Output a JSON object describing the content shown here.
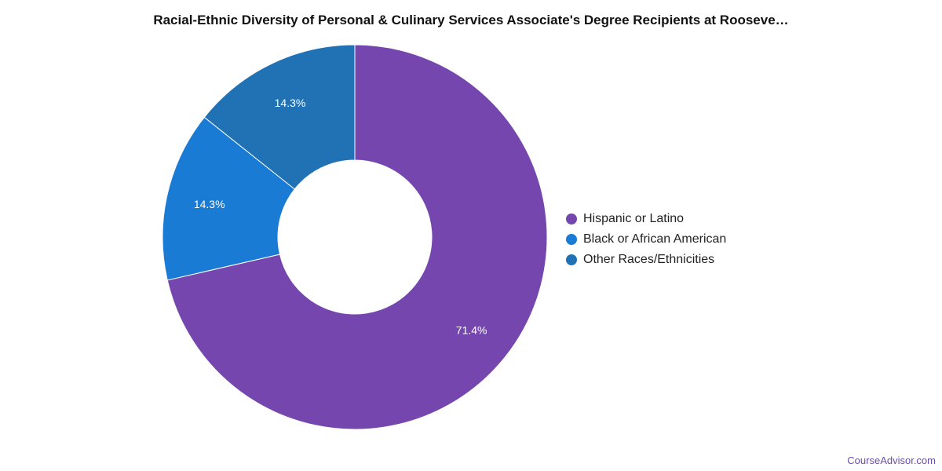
{
  "chart_data": {
    "type": "pie",
    "title": "Racial-Ethnic Diversity of Personal & Culinary Services Associate's Degree Recipients at Rooseve…",
    "series": [
      {
        "name": "Hispanic or Latino",
        "value": 71.4,
        "label": "71.4%",
        "color": "#7547ae"
      },
      {
        "name": "Black or African American",
        "value": 14.3,
        "label": "14.3%",
        "color": "#1a7bd4"
      },
      {
        "name": "Other Races/Ethnicities",
        "value": 14.3,
        "label": "14.3%",
        "color": "#2171b5"
      }
    ],
    "legend_position": "right"
  },
  "footer": {
    "source": "CourseAdvisor.com"
  }
}
